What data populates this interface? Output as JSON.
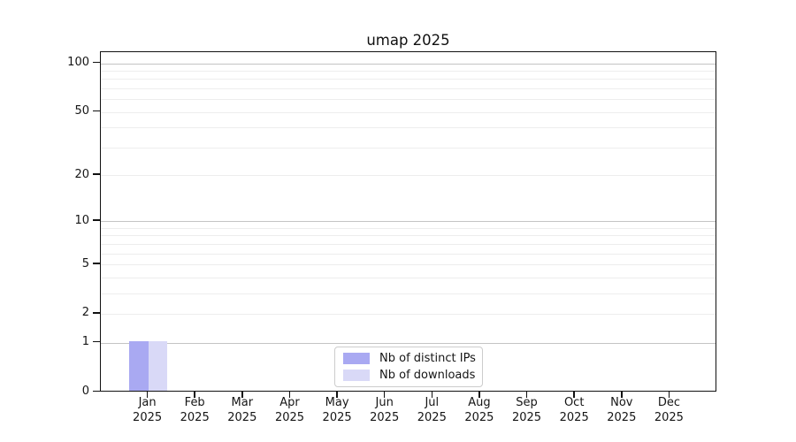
{
  "chart_data": {
    "type": "bar",
    "title": "umap 2025",
    "categories": [
      "Jan",
      "Feb",
      "Mar",
      "Apr",
      "May",
      "Jun",
      "Jul",
      "Aug",
      "Sep",
      "Oct",
      "Nov",
      "Dec"
    ],
    "category_year": "2025",
    "series": [
      {
        "name": "Nb of distinct IPs",
        "color": "#a9a9f2",
        "values": [
          1,
          0,
          0,
          0,
          0,
          0,
          0,
          0,
          0,
          0,
          0,
          0
        ]
      },
      {
        "name": "Nb of downloads",
        "color": "#d9d9f7",
        "values": [
          1,
          0,
          0,
          0,
          0,
          0,
          0,
          0,
          0,
          0,
          0,
          0
        ]
      }
    ],
    "yscale": "log1p",
    "yticks": [
      0,
      1,
      2,
      5,
      10,
      20,
      50,
      100
    ],
    "ylim": [
      0,
      116
    ],
    "xlim": [
      -1,
      12
    ],
    "grid": {
      "strong_lines": [
        1,
        10,
        100
      ],
      "light_lines": [
        2,
        3,
        4,
        5,
        6,
        7,
        8,
        9,
        20,
        30,
        40,
        50,
        60,
        70,
        80,
        90
      ],
      "strong_color": "#c4c4c4",
      "light_color": "#ededed"
    },
    "legend_position": "lower center",
    "bar_width_ratio": 0.4
  }
}
